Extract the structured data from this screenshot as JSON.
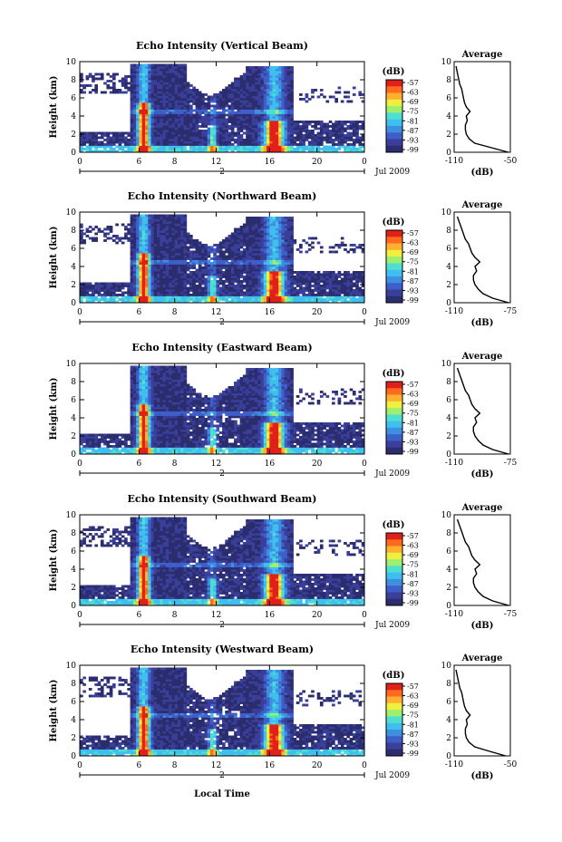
{
  "figure": {
    "xlabel": "Local Time",
    "date_label": "Jul 2009",
    "day_label": "2",
    "height_label": "Height (km)",
    "avg_title": "Average",
    "db_label": "(dB)"
  },
  "colors": {
    "colormap": [
      "#2b2d6e",
      "#3a3f99",
      "#3e5fc9",
      "#3f8fe0",
      "#3fbfef",
      "#4fdfcf",
      "#9fef6f",
      "#efef3f",
      "#ffb02f",
      "#ff6a1f",
      "#e0201a"
    ],
    "frame": "#000000",
    "background": "#ffffff"
  },
  "chart_data": [
    {
      "type": "heatmap",
      "title": "Echo Intensity (Vertical Beam)",
      "ylabel": "Height (km)",
      "xlabel": "Local Time",
      "xlim": [
        0,
        24
      ],
      "ylim": [
        0,
        10
      ],
      "xticks": [
        "0",
        "6",
        "8",
        "12",
        "16",
        "20",
        "0"
      ],
      "yticks": [
        "0",
        "2",
        "4",
        "6",
        "8",
        "10"
      ],
      "colorbar": {
        "label": "(dB)",
        "ticks": [
          "-57",
          "-63",
          "-69",
          "-75",
          "-81",
          "-87",
          "-93",
          "-99"
        ]
      },
      "average_profile": {
        "title": "Average",
        "xlabel": "(dB)",
        "xlim": [
          -110,
          -50
        ],
        "xticks": [
          "-110",
          "-50"
        ],
        "height_km": [
          0,
          0.5,
          1,
          1.5,
          2,
          2.5,
          3,
          3.5,
          4,
          4.5,
          5,
          5.5,
          6,
          6.5,
          7,
          7.5,
          8,
          8.5,
          9,
          9.5
        ],
        "db": [
          -52,
          -70,
          -88,
          -94,
          -97,
          -98,
          -98,
          -96,
          -97,
          -93,
          -97,
          -99,
          -100,
          -101,
          -102,
          -104,
          -105,
          -106,
          -107,
          -108
        ]
      }
    },
    {
      "type": "heatmap",
      "title": "Echo Intensity (Northward Beam)",
      "ylabel": "Height (km)",
      "xlabel": "Local Time",
      "xlim": [
        0,
        24
      ],
      "ylim": [
        0,
        10
      ],
      "xticks": [
        "0",
        "6",
        "8",
        "12",
        "16",
        "20",
        "0"
      ],
      "yticks": [
        "0",
        "2",
        "4",
        "6",
        "8",
        "10"
      ],
      "colorbar": {
        "label": "(dB)",
        "ticks": [
          "-57",
          "-63",
          "-69",
          "-75",
          "-81",
          "-87",
          "-93",
          "-99"
        ]
      },
      "average_profile": {
        "title": "Average",
        "xlabel": "(dB)",
        "xlim": [
          -110,
          -75
        ],
        "xticks": [
          "-110",
          "-75"
        ],
        "height_km": [
          0,
          0.5,
          1,
          1.5,
          2,
          2.5,
          3,
          3.5,
          4,
          4.5,
          5,
          5.5,
          6,
          6.5,
          7,
          7.5,
          8,
          8.5,
          9,
          9.5
        ],
        "db": [
          -76,
          -86,
          -92,
          -95,
          -97,
          -98,
          -98,
          -96,
          -97,
          -94,
          -97,
          -99,
          -100,
          -101,
          -103,
          -104,
          -105,
          -106,
          -107,
          -108
        ]
      }
    },
    {
      "type": "heatmap",
      "title": "Echo Intensity (Eastward Beam)",
      "ylabel": "Height (km)",
      "xlabel": "Local Time",
      "xlim": [
        0,
        24
      ],
      "ylim": [
        0,
        10
      ],
      "xticks": [
        "0",
        "6",
        "8",
        "12",
        "16",
        "20",
        "0"
      ],
      "yticks": [
        "0",
        "2",
        "4",
        "6",
        "8",
        "10"
      ],
      "colorbar": {
        "label": "(dB)",
        "ticks": [
          "-57",
          "-63",
          "-69",
          "-75",
          "-81",
          "-87",
          "-93",
          "-99"
        ]
      },
      "average_profile": {
        "title": "Average",
        "xlabel": "(dB)",
        "xlim": [
          -110,
          -75
        ],
        "xticks": [
          "-110",
          "-75"
        ],
        "height_km": [
          0,
          0.5,
          1,
          1.5,
          2,
          2.5,
          3,
          3.5,
          4,
          4.5,
          5,
          5.5,
          6,
          6.5,
          7,
          7.5,
          8,
          8.5,
          9,
          9.5
        ],
        "db": [
          -76,
          -86,
          -92,
          -95,
          -97,
          -98,
          -98,
          -96,
          -97,
          -94,
          -97,
          -99,
          -100,
          -101,
          -103,
          -104,
          -105,
          -106,
          -107,
          -108
        ]
      }
    },
    {
      "type": "heatmap",
      "title": "Echo Intensity (Southward Beam)",
      "ylabel": "Height (km)",
      "xlabel": "Local Time",
      "xlim": [
        0,
        24
      ],
      "ylim": [
        0,
        10
      ],
      "xticks": [
        "0",
        "6",
        "8",
        "12",
        "16",
        "20",
        "0"
      ],
      "yticks": [
        "0",
        "2",
        "4",
        "6",
        "8",
        "10"
      ],
      "colorbar": {
        "label": "(dB)",
        "ticks": [
          "-57",
          "-63",
          "-69",
          "-75",
          "-81",
          "-87",
          "-93",
          "-99"
        ]
      },
      "average_profile": {
        "title": "Average",
        "xlabel": "(dB)",
        "xlim": [
          -110,
          -75
        ],
        "xticks": [
          "-110",
          "-75"
        ],
        "height_km": [
          0,
          0.5,
          1,
          1.5,
          2,
          2.5,
          3,
          3.5,
          4,
          4.5,
          5,
          5.5,
          6,
          6.5,
          7,
          7.5,
          8,
          8.5,
          9,
          9.5
        ],
        "db": [
          -76,
          -86,
          -92,
          -95,
          -97,
          -98,
          -98,
          -96,
          -97,
          -94,
          -97,
          -99,
          -100,
          -101,
          -103,
          -104,
          -105,
          -106,
          -107,
          -108
        ]
      }
    },
    {
      "type": "heatmap",
      "title": "Echo Intensity (Westward Beam)",
      "ylabel": "Height (km)",
      "xlabel": "Local Time",
      "xlim": [
        0,
        24
      ],
      "ylim": [
        0,
        10
      ],
      "xticks": [
        "0",
        "6",
        "8",
        "12",
        "16",
        "20",
        "0"
      ],
      "yticks": [
        "0",
        "2",
        "4",
        "6",
        "8",
        "10"
      ],
      "colorbar": {
        "label": "(dB)",
        "ticks": [
          "-57",
          "-63",
          "-69",
          "-75",
          "-81",
          "-87",
          "-93",
          "-99"
        ]
      },
      "average_profile": {
        "title": "Average",
        "xlabel": "(dB)",
        "xlim": [
          -110,
          -50
        ],
        "xticks": [
          "-110",
          "-50"
        ],
        "height_km": [
          0,
          0.5,
          1,
          1.5,
          2,
          2.5,
          3,
          3.5,
          4,
          4.5,
          5,
          5.5,
          6,
          6.5,
          7,
          7.5,
          8,
          8.5,
          9,
          9.5
        ],
        "db": [
          -55,
          -72,
          -88,
          -94,
          -97,
          -98,
          -98,
          -96,
          -97,
          -93,
          -97,
          -99,
          -100,
          -101,
          -102,
          -104,
          -105,
          -106,
          -107,
          -108
        ]
      }
    }
  ]
}
